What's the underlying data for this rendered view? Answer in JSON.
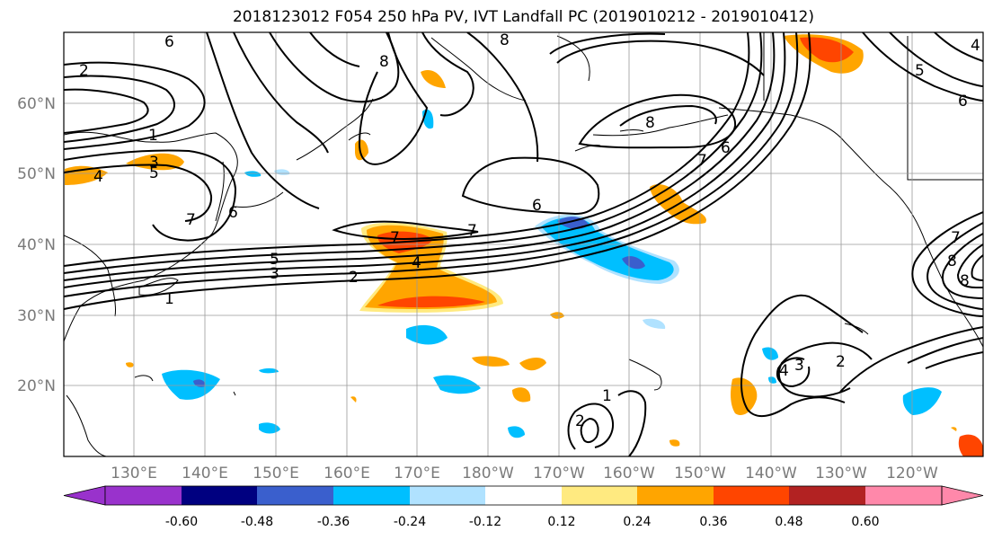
{
  "title": "2018123012 F054 250 hPa PV, IVT Landfall PC (2019010212 - 2019010412)",
  "lat_labels": [
    "60°N",
    "50°N",
    "40°N",
    "30°N",
    "20°N"
  ],
  "lon_labels": [
    "130°E",
    "140°E",
    "150°E",
    "160°E",
    "170°E",
    "180°W",
    "170°W",
    "160°W",
    "150°W",
    "140°W",
    "130°W",
    "120°W"
  ],
  "colorbar": {
    "ticks": [
      "-0.60",
      "-0.48",
      "-0.36",
      "-0.24",
      "-0.12",
      "0.12",
      "0.24",
      "0.36",
      "0.48",
      "0.60"
    ],
    "colors": [
      "#9932cc",
      "#000080",
      "#3a5fcd",
      "#00bfff",
      "#b0e2ff",
      "#ffffff",
      "#ffea80",
      "#ffa500",
      "#ff4500",
      "#b22222",
      "#ff88aa"
    ]
  },
  "contour_labels": [
    "6",
    "2",
    "1",
    "3",
    "4",
    "5",
    "7",
    "6",
    "5",
    "3",
    "1",
    "2",
    "4",
    "7",
    "7",
    "6",
    "8",
    "8",
    "8",
    "6",
    "7",
    "2",
    "3",
    "4",
    "1",
    "2",
    "5",
    "6",
    "8",
    "7",
    "8",
    "4"
  ]
}
